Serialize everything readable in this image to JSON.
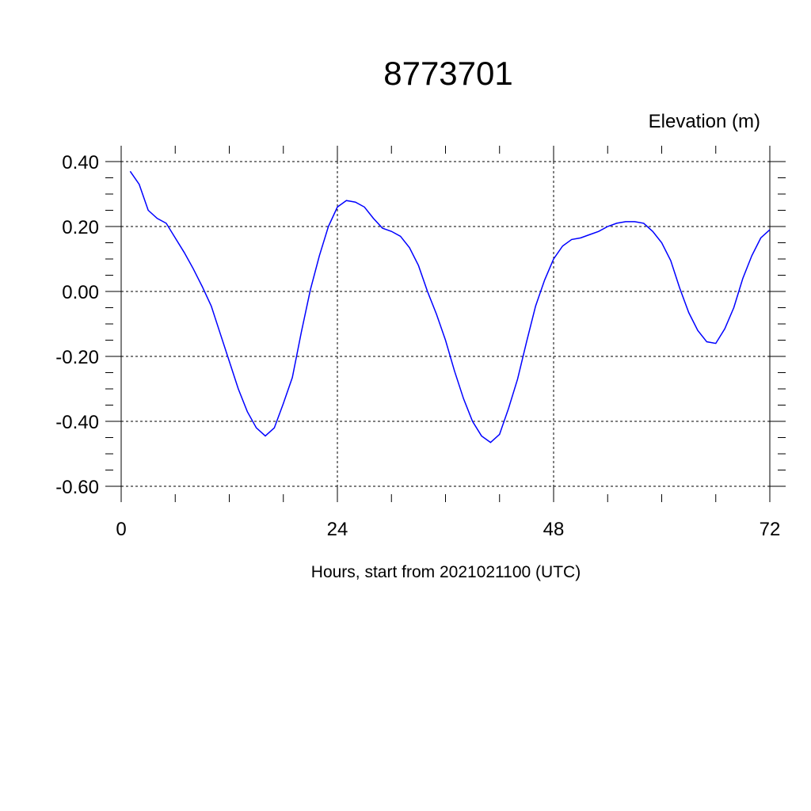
{
  "chart_data": {
    "type": "line",
    "title": "8773701",
    "y_label": "Elevation (m)",
    "x_label": "Hours, start from 2021021100 (UTC)",
    "x": [
      1,
      2,
      3,
      4,
      5,
      6,
      7,
      8,
      9,
      10,
      11,
      12,
      13,
      14,
      15,
      16,
      17,
      18,
      19,
      20,
      21,
      22,
      23,
      24,
      25,
      26,
      27,
      28,
      29,
      30,
      31,
      32,
      33,
      34,
      35,
      36,
      37,
      38,
      39,
      40,
      41,
      42,
      43,
      44,
      45,
      46,
      47,
      48,
      49,
      50,
      51,
      52,
      53,
      54,
      55,
      56,
      57,
      58,
      59,
      60,
      61,
      62,
      63,
      64,
      65,
      66,
      67,
      68,
      69,
      70,
      71,
      72
    ],
    "series": [
      {
        "color": "#0000ff",
        "values": [
          0.37,
          0.33,
          0.25,
          0.225,
          0.21,
          0.165,
          0.12,
          0.07,
          0.015,
          -0.045,
          -0.13,
          -0.215,
          -0.3,
          -0.37,
          -0.42,
          -0.445,
          -0.42,
          -0.345,
          -0.265,
          -0.125,
          0.005,
          0.11,
          0.2,
          0.26,
          0.28,
          0.275,
          0.26,
          0.225,
          0.195,
          0.185,
          0.17,
          0.135,
          0.08,
          0.0,
          -0.07,
          -0.15,
          -0.245,
          -0.33,
          -0.4,
          -0.445,
          -0.465,
          -0.44,
          -0.36,
          -0.27,
          -0.155,
          -0.045,
          0.035,
          0.1,
          0.14,
          0.16,
          0.165,
          0.175,
          0.185,
          0.2,
          0.21,
          0.215,
          0.215,
          0.21,
          0.185,
          0.15,
          0.095,
          0.01,
          -0.065,
          -0.12,
          -0.155,
          -0.16,
          -0.115,
          -0.05,
          0.04,
          0.11,
          0.165,
          0.19
        ]
      }
    ],
    "xlim": [
      0,
      72
    ],
    "xticks": [
      0,
      24,
      48,
      72
    ],
    "ylim": [
      -0.6,
      0.4
    ],
    "yticks": [
      {
        "value": 0.4,
        "label": "0.40"
      },
      {
        "value": 0.2,
        "label": "0.20"
      },
      {
        "value": 0,
        "label": "0.00"
      },
      {
        "value": -0.2,
        "label": "-0.20"
      },
      {
        "value": -0.4,
        "label": "-0.40"
      },
      {
        "value": -0.6,
        "label": "-0.60"
      }
    ],
    "grid": true
  }
}
